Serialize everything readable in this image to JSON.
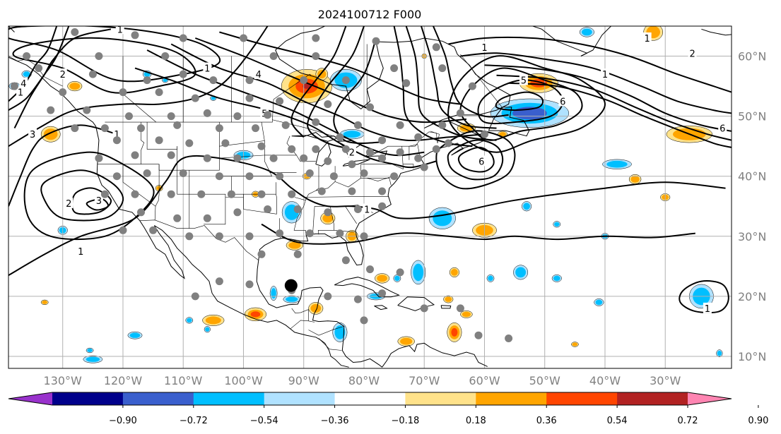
{
  "title": "2024100712 F000",
  "map": {
    "projection": "PlateCarree",
    "lon_range": [
      -139,
      -19
    ],
    "lat_range": [
      8,
      65
    ],
    "lon_ticks": [
      "130°W",
      "120°W",
      "110°W",
      "100°W",
      "90°W",
      "80°W",
      "70°W",
      "60°W",
      "50°W",
      "40°W",
      "30°W"
    ],
    "lon_tick_values": [
      -130,
      -120,
      -110,
      -100,
      -90,
      -80,
      -70,
      -60,
      -50,
      -40,
      -30
    ],
    "lat_ticks": [
      "60°N",
      "50°N",
      "40°N",
      "30°N",
      "20°N",
      "10°N"
    ],
    "lat_tick_values": [
      60,
      50,
      40,
      30,
      20,
      10
    ],
    "gridlines": true,
    "label_color": "#808080"
  },
  "storm_marker": {
    "lon": -92.1,
    "lat": 21.8,
    "color": "#000000"
  },
  "contour_labels": [
    {
      "text": "1",
      "lon": -120.5,
      "lat": 64.5
    },
    {
      "text": "1",
      "lon": -106,
      "lat": 58
    },
    {
      "text": "1",
      "lon": -137,
      "lat": 54
    },
    {
      "text": "4",
      "lon": -136.5,
      "lat": 55.5
    },
    {
      "text": "2",
      "lon": -130,
      "lat": 57
    },
    {
      "text": "3",
      "lon": -135,
      "lat": 47
    },
    {
      "text": "1",
      "lon": -121,
      "lat": 47
    },
    {
      "text": "2",
      "lon": -129,
      "lat": 35.5
    },
    {
      "text": "3",
      "lon": -124,
      "lat": 36
    },
    {
      "text": "1",
      "lon": -127,
      "lat": 27.5
    },
    {
      "text": "4",
      "lon": -97.5,
      "lat": 57
    },
    {
      "text": "5",
      "lon": -96.5,
      "lat": 50.5
    },
    {
      "text": "2",
      "lon": -82,
      "lat": 44
    },
    {
      "text": "1",
      "lon": -79.5,
      "lat": 34.5
    },
    {
      "text": "1",
      "lon": -60,
      "lat": 61.5
    },
    {
      "text": "5",
      "lon": -53.5,
      "lat": 56
    },
    {
      "text": "6",
      "lon": -47,
      "lat": 52.5
    },
    {
      "text": "6",
      "lon": -60.5,
      "lat": 42.5
    },
    {
      "text": "1",
      "lon": -33,
      "lat": 63
    },
    {
      "text": "2",
      "lon": -25.5,
      "lat": 60.5
    },
    {
      "text": "1",
      "lon": -40,
      "lat": 57
    },
    {
      "text": "6",
      "lon": -20.5,
      "lat": 48
    },
    {
      "text": "1",
      "lon": -23,
      "lat": 18
    }
  ],
  "colorbar": {
    "tick_labels": [
      "−0.90",
      "−0.72",
      "−0.54",
      "−0.36",
      "−0.18",
      "0.18",
      "0.36",
      "0.54",
      "0.72",
      "0.90"
    ],
    "tick_values": [
      -0.9,
      -0.72,
      -0.54,
      -0.36,
      -0.18,
      0.18,
      0.36,
      0.54,
      0.72,
      0.9
    ],
    "colors": [
      "#9932cc",
      "#00008b",
      "#3a5fcd",
      "#00bfff",
      "#b0e2ff",
      "#ffffff",
      "#ffe28a",
      "#ffa500",
      "#ff4500",
      "#b22222",
      "#ff85b2"
    ],
    "extend": "both"
  },
  "chart_data": {
    "type": "heatmap",
    "title": "2024100712 F000",
    "xlim": [
      -139,
      -19
    ],
    "ylim": [
      8,
      65
    ],
    "grid": true,
    "colorbar_levels": [
      -0.9,
      -0.72,
      -0.54,
      -0.36,
      -0.18,
      0.18,
      0.36,
      0.54,
      0.72,
      0.9
    ],
    "shaded_features": [
      {
        "lon": -89.5,
        "lat": 55,
        "peak": 0.75
      },
      {
        "lon": -52.5,
        "lat": 50.5,
        "peak": -0.6
      },
      {
        "lon": -51,
        "lat": 55.5,
        "peak": 0.65
      },
      {
        "lon": -83,
        "lat": 56,
        "peak": -0.5
      },
      {
        "lon": -65,
        "lat": 14,
        "peak": 0.65
      },
      {
        "lon": -98,
        "lat": 17,
        "peak": 0.6
      },
      {
        "lon": -67,
        "lat": 33,
        "peak": -0.45
      },
      {
        "lon": -60,
        "lat": 31,
        "peak": 0.4
      },
      {
        "lon": -26,
        "lat": 47,
        "peak": 0.45
      },
      {
        "lon": -24,
        "lat": 20,
        "peak": -0.4
      },
      {
        "lon": -32,
        "lat": 64,
        "peak": 0.4
      },
      {
        "lon": -132,
        "lat": 47,
        "peak": 0.4
      }
    ]
  }
}
